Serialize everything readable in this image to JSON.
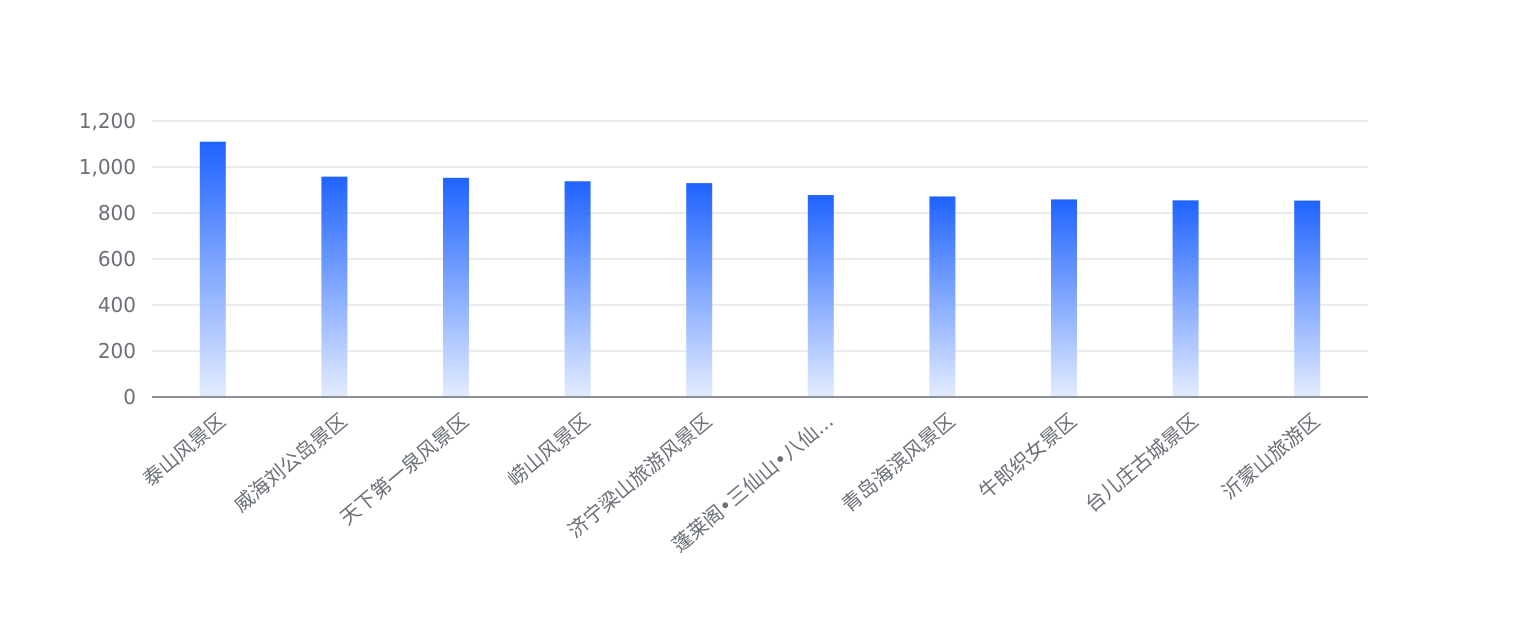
{
  "chart_data": {
    "type": "bar",
    "title": "",
    "xlabel": "",
    "ylabel": "",
    "ylim": [
      0,
      1200
    ],
    "yticks": [
      0,
      200,
      400,
      600,
      800,
      1000,
      1200
    ],
    "ytick_labels": [
      "0",
      "200",
      "400",
      "600",
      "800",
      "1,000",
      "1,200"
    ],
    "grid": true,
    "legend": false,
    "bar_gradient": {
      "top": "#1f63ff",
      "bottom": "#e3ecff"
    },
    "categories": [
      "泰山风景区",
      "威海刘公岛景区",
      "天下第一泉风景区",
      "崂山风景区",
      "济宁梁山旅游风景区",
      "蓬莱阁•三仙山•八仙...",
      "青岛海滨风景区",
      "牛郎织女景区",
      "台儿庄古城景区",
      "沂蒙山旅游区"
    ],
    "values": [
      1110,
      958,
      953,
      938,
      930,
      878,
      872,
      859,
      855,
      854
    ]
  }
}
